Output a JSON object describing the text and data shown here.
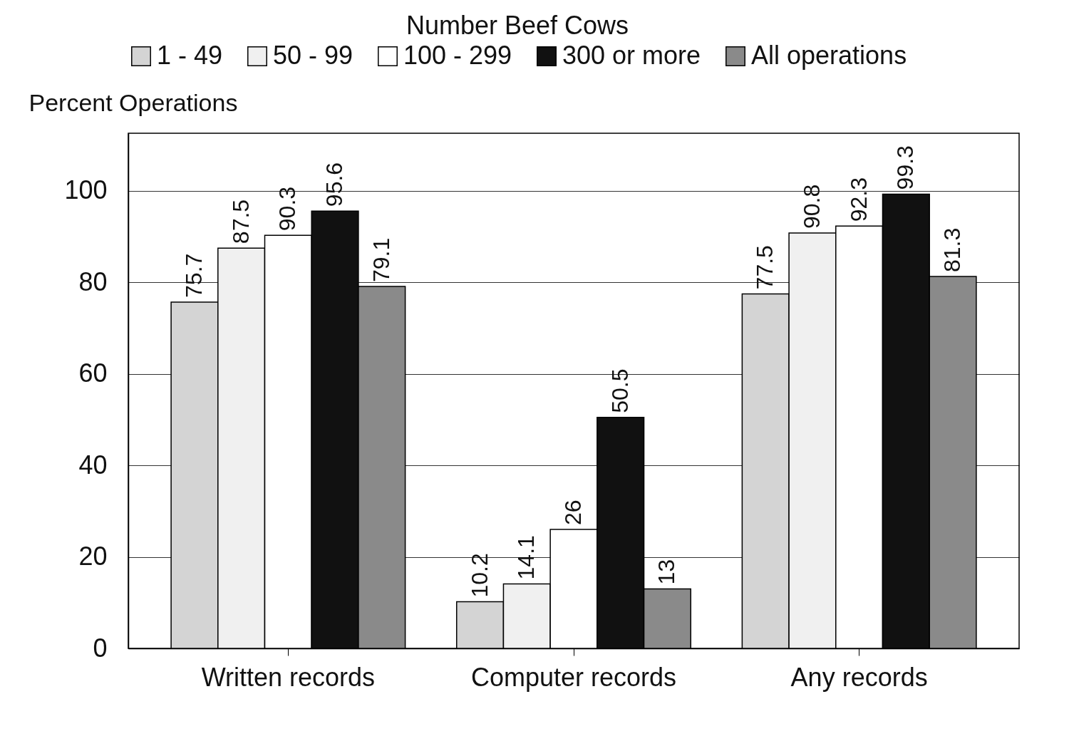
{
  "chart_data": {
    "type": "bar",
    "legend_title": "Number Beef Cows",
    "ylabel": "Percent Operations",
    "categories": [
      "Written records",
      "Computer records",
      "Any records"
    ],
    "series": [
      {
        "name": "1 - 49",
        "color": "#d4d4d4",
        "values": [
          75.7,
          10.2,
          77.5
        ]
      },
      {
        "name": "50 - 99",
        "color": "#f0f0f0",
        "values": [
          87.5,
          14.1,
          90.8
        ]
      },
      {
        "name": "100 - 299",
        "color": "#ffffff",
        "values": [
          90.3,
          26,
          92.3
        ]
      },
      {
        "name": "300 or more",
        "color": "#111111",
        "values": [
          95.6,
          50.5,
          99.3
        ]
      },
      {
        "name": "All operations",
        "color": "#8a8a8a",
        "values": [
          79.1,
          13,
          81.3
        ]
      }
    ],
    "ylim": [
      0,
      112.6
    ],
    "yticks": [
      0,
      20,
      40,
      60,
      80,
      100
    ],
    "grid": "y",
    "legend": "top",
    "data_labels": true
  }
}
